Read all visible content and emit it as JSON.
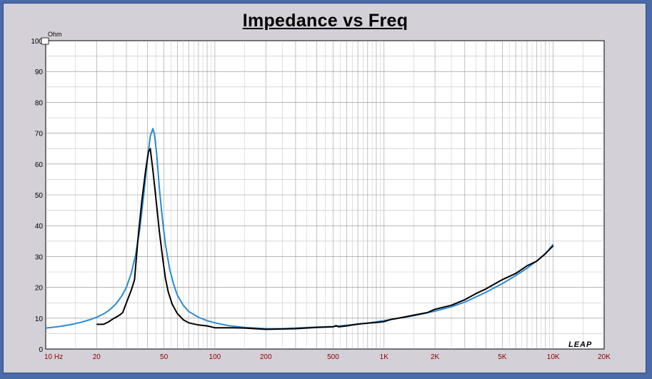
{
  "chart_data": {
    "type": "line",
    "title": "Impedance vs Freq",
    "ylabel": "Ohm",
    "xlabel": "",
    "x_scale": "log",
    "xlim": [
      10,
      20000
    ],
    "ylim": [
      0,
      100
    ],
    "grid": true,
    "logo": "LEAP",
    "x_ticks": [
      {
        "value": 10,
        "label": "10  Hz"
      },
      {
        "value": 20,
        "label": "20"
      },
      {
        "value": 50,
        "label": "50"
      },
      {
        "value": 100,
        "label": "100"
      },
      {
        "value": 200,
        "label": "200"
      },
      {
        "value": 500,
        "label": "500"
      },
      {
        "value": 1000,
        "label": "1K"
      },
      {
        "value": 2000,
        "label": "2K"
      },
      {
        "value": 5000,
        "label": "5K"
      },
      {
        "value": 10000,
        "label": "10K"
      },
      {
        "value": 20000,
        "label": "20K"
      }
    ],
    "y_ticks": [
      {
        "value": 0,
        "label": "0"
      },
      {
        "value": 10,
        "label": "10"
      },
      {
        "value": 20,
        "label": "20"
      },
      {
        "value": 30,
        "label": "30"
      },
      {
        "value": 40,
        "label": "40"
      },
      {
        "value": 50,
        "label": "50"
      },
      {
        "value": 60,
        "label": "60"
      },
      {
        "value": 70,
        "label": "70"
      },
      {
        "value": 80,
        "label": "80"
      },
      {
        "value": 90,
        "label": "90"
      },
      {
        "value": 100,
        "label": "100"
      }
    ],
    "series": [
      {
        "color": "#2a8ad4",
        "points": [
          [
            10,
            6.8
          ],
          [
            12,
            7.3
          ],
          [
            14,
            7.9
          ],
          [
            16,
            8.6
          ],
          [
            18,
            9.4
          ],
          [
            20,
            10.3
          ],
          [
            22,
            11.4
          ],
          [
            24,
            12.8
          ],
          [
            26,
            14.6
          ],
          [
            28,
            17.0
          ],
          [
            30,
            20.0
          ],
          [
            32,
            24.5
          ],
          [
            34,
            30.5
          ],
          [
            36,
            39.0
          ],
          [
            38,
            50.0
          ],
          [
            40,
            62.0
          ],
          [
            41.5,
            69.0
          ],
          [
            43,
            71.5
          ],
          [
            44,
            69.5
          ],
          [
            45.5,
            62.0
          ],
          [
            47,
            52.0
          ],
          [
            49,
            42.0
          ],
          [
            51,
            34.0
          ],
          [
            54,
            26.0
          ],
          [
            57,
            21.0
          ],
          [
            60,
            17.5
          ],
          [
            65,
            14.2
          ],
          [
            70,
            12.2
          ],
          [
            80,
            10.3
          ],
          [
            90,
            9.2
          ],
          [
            100,
            8.5
          ],
          [
            120,
            7.6
          ],
          [
            150,
            7.0
          ],
          [
            200,
            6.6
          ],
          [
            250,
            6.6
          ],
          [
            300,
            6.8
          ],
          [
            400,
            7.1
          ],
          [
            500,
            7.3
          ],
          [
            600,
            7.7
          ],
          [
            700,
            8.0
          ],
          [
            800,
            8.4
          ],
          [
            900,
            8.8
          ],
          [
            1000,
            9.2
          ],
          [
            1200,
            9.9
          ],
          [
            1500,
            10.8
          ],
          [
            2000,
            12.3
          ],
          [
            2500,
            13.7
          ],
          [
            3000,
            15.2
          ],
          [
            4000,
            18.4
          ],
          [
            5000,
            21.2
          ],
          [
            6000,
            23.8
          ],
          [
            7000,
            26.2
          ],
          [
            8000,
            28.6
          ],
          [
            9000,
            30.8
          ],
          [
            10000,
            34.0
          ]
        ]
      },
      {
        "color": "#000000",
        "points": [
          [
            20,
            8.0
          ],
          [
            22,
            8.0
          ],
          [
            23.5,
            8.8
          ],
          [
            25,
            9.8
          ],
          [
            27,
            10.8
          ],
          [
            28.5,
            11.8
          ],
          [
            30,
            15.0
          ],
          [
            32,
            19.0
          ],
          [
            33.5,
            22.5
          ],
          [
            35,
            35.0
          ],
          [
            37,
            48.0
          ],
          [
            39,
            58.0
          ],
          [
            40.5,
            64.0
          ],
          [
            41.5,
            65.0
          ],
          [
            43,
            58.0
          ],
          [
            45,
            48.0
          ],
          [
            47,
            38.0
          ],
          [
            49,
            30.0
          ],
          [
            51,
            23.0
          ],
          [
            53,
            18.5
          ],
          [
            56,
            14.5
          ],
          [
            60,
            11.5
          ],
          [
            65,
            9.5
          ],
          [
            70,
            8.5
          ],
          [
            80,
            7.8
          ],
          [
            90,
            7.5
          ],
          [
            100,
            6.9
          ],
          [
            130,
            6.9
          ],
          [
            150,
            6.8
          ],
          [
            200,
            6.4
          ],
          [
            300,
            6.6
          ],
          [
            400,
            7.0
          ],
          [
            500,
            7.2
          ],
          [
            520,
            7.6
          ],
          [
            540,
            7.2
          ],
          [
            600,
            7.5
          ],
          [
            700,
            8.1
          ],
          [
            800,
            8.4
          ],
          [
            900,
            8.6
          ],
          [
            1000,
            8.9
          ],
          [
            1100,
            9.6
          ],
          [
            1300,
            10.3
          ],
          [
            1500,
            11.0
          ],
          [
            1800,
            11.8
          ],
          [
            2000,
            12.9
          ],
          [
            2500,
            14.2
          ],
          [
            3000,
            16.0
          ],
          [
            3500,
            18.0
          ],
          [
            4000,
            19.5
          ],
          [
            5000,
            22.5
          ],
          [
            6000,
            24.5
          ],
          [
            7000,
            27.0
          ],
          [
            8000,
            28.5
          ],
          [
            9000,
            31.0
          ],
          [
            10000,
            33.5
          ]
        ]
      }
    ]
  }
}
